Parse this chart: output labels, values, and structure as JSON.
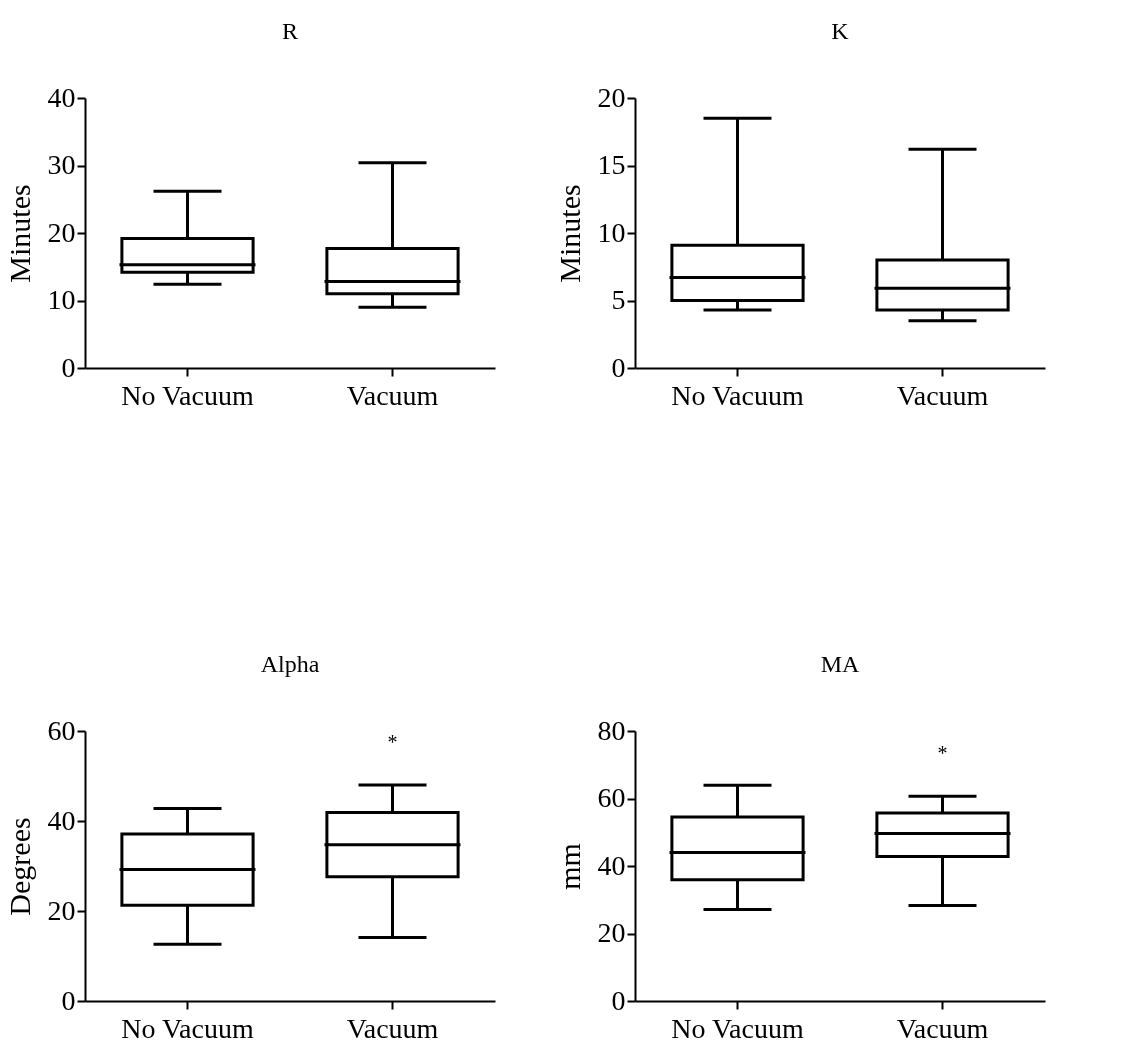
{
  "chart_data": [
    {
      "type": "box",
      "title": "R",
      "ylabel": "Minutes",
      "categories": [
        "No Vacuum",
        "Vacuum"
      ],
      "ylim": [
        0,
        40
      ],
      "yticks": [
        0,
        10,
        20,
        30,
        40
      ],
      "grid": false,
      "boxes": [
        {
          "low": 12.4,
          "q1": 14.2,
          "median": 15.3,
          "q3": 19.2,
          "high": 26.2
        },
        {
          "low": 9.0,
          "q1": 11.0,
          "median": 12.8,
          "q3": 17.7,
          "high": 30.4
        }
      ]
    },
    {
      "type": "box",
      "title": "K",
      "ylabel": "Minutes",
      "categories": [
        "No Vacuum",
        "Vacuum"
      ],
      "ylim": [
        0,
        20
      ],
      "yticks": [
        0,
        5,
        10,
        15,
        20
      ],
      "grid": false,
      "boxes": [
        {
          "low": 4.3,
          "q1": 5.0,
          "median": 6.7,
          "q3": 9.1,
          "high": 18.5
        },
        {
          "low": 3.5,
          "q1": 4.3,
          "median": 5.9,
          "q3": 8.0,
          "high": 16.2
        }
      ]
    },
    {
      "type": "box",
      "title": "Alpha",
      "ylabel": "Degrees",
      "categories": [
        "No Vacuum",
        "Vacuum"
      ],
      "ylim": [
        0,
        60
      ],
      "yticks": [
        0,
        20,
        40,
        60
      ],
      "grid": false,
      "boxes": [
        {
          "low": 12.6,
          "q1": 21.3,
          "median": 29.2,
          "q3": 37.1,
          "high": 42.8
        },
        {
          "low": 14.1,
          "q1": 27.6,
          "median": 34.7,
          "q3": 41.9,
          "high": 48.0
        }
      ],
      "annotations": [
        "*"
      ]
    },
    {
      "type": "box",
      "title": "MA",
      "ylabel": "mm",
      "categories": [
        "No Vacuum",
        "Vacuum"
      ],
      "ylim": [
        0,
        80
      ],
      "yticks": [
        0,
        20,
        40,
        60,
        80
      ],
      "grid": false,
      "boxes": [
        {
          "low": 27.1,
          "q1": 35.9,
          "median": 44.0,
          "q3": 54.5,
          "high": 63.9
        },
        {
          "low": 28.3,
          "q1": 42.8,
          "median": 49.6,
          "q3": 55.7,
          "high": 60.7
        }
      ],
      "annotations": [
        "*"
      ]
    }
  ]
}
